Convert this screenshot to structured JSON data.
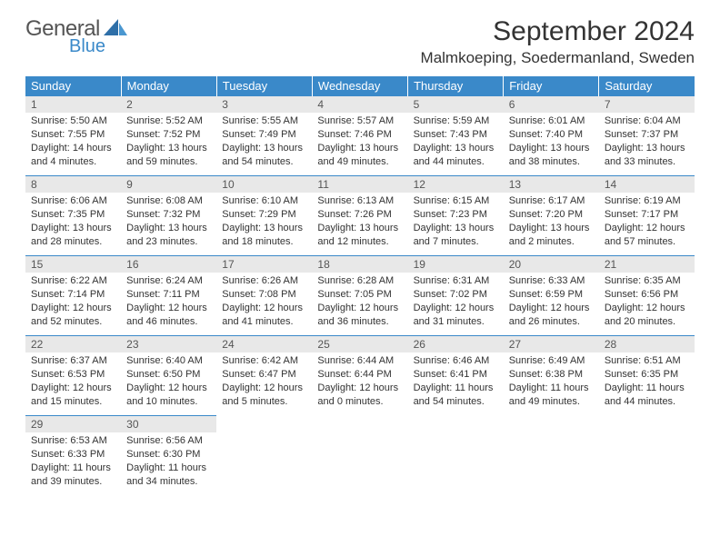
{
  "brand": {
    "general": "General",
    "blue": "Blue"
  },
  "header": {
    "month_title": "September 2024",
    "location": "Malmkoeping, Soedermanland, Sweden"
  },
  "colors": {
    "header_bg": "#3a89c9",
    "header_fg": "#ffffff",
    "daynum_bg": "#e8e8e8",
    "border": "#3a89c9",
    "text": "#333333"
  },
  "day_headers": [
    "Sunday",
    "Monday",
    "Tuesday",
    "Wednesday",
    "Thursday",
    "Friday",
    "Saturday"
  ],
  "weeks": [
    [
      {
        "n": "1",
        "sr": "5:50 AM",
        "ss": "7:55 PM",
        "dh": "14",
        "dm": "4"
      },
      {
        "n": "2",
        "sr": "5:52 AM",
        "ss": "7:52 PM",
        "dh": "13",
        "dm": "59"
      },
      {
        "n": "3",
        "sr": "5:55 AM",
        "ss": "7:49 PM",
        "dh": "13",
        "dm": "54"
      },
      {
        "n": "4",
        "sr": "5:57 AM",
        "ss": "7:46 PM",
        "dh": "13",
        "dm": "49"
      },
      {
        "n": "5",
        "sr": "5:59 AM",
        "ss": "7:43 PM",
        "dh": "13",
        "dm": "44"
      },
      {
        "n": "6",
        "sr": "6:01 AM",
        "ss": "7:40 PM",
        "dh": "13",
        "dm": "38"
      },
      {
        "n": "7",
        "sr": "6:04 AM",
        "ss": "7:37 PM",
        "dh": "13",
        "dm": "33"
      }
    ],
    [
      {
        "n": "8",
        "sr": "6:06 AM",
        "ss": "7:35 PM",
        "dh": "13",
        "dm": "28"
      },
      {
        "n": "9",
        "sr": "6:08 AM",
        "ss": "7:32 PM",
        "dh": "13",
        "dm": "23"
      },
      {
        "n": "10",
        "sr": "6:10 AM",
        "ss": "7:29 PM",
        "dh": "13",
        "dm": "18"
      },
      {
        "n": "11",
        "sr": "6:13 AM",
        "ss": "7:26 PM",
        "dh": "13",
        "dm": "12"
      },
      {
        "n": "12",
        "sr": "6:15 AM",
        "ss": "7:23 PM",
        "dh": "13",
        "dm": "7"
      },
      {
        "n": "13",
        "sr": "6:17 AM",
        "ss": "7:20 PM",
        "dh": "13",
        "dm": "2"
      },
      {
        "n": "14",
        "sr": "6:19 AM",
        "ss": "7:17 PM",
        "dh": "12",
        "dm": "57"
      }
    ],
    [
      {
        "n": "15",
        "sr": "6:22 AM",
        "ss": "7:14 PM",
        "dh": "12",
        "dm": "52"
      },
      {
        "n": "16",
        "sr": "6:24 AM",
        "ss": "7:11 PM",
        "dh": "12",
        "dm": "46"
      },
      {
        "n": "17",
        "sr": "6:26 AM",
        "ss": "7:08 PM",
        "dh": "12",
        "dm": "41"
      },
      {
        "n": "18",
        "sr": "6:28 AM",
        "ss": "7:05 PM",
        "dh": "12",
        "dm": "36"
      },
      {
        "n": "19",
        "sr": "6:31 AM",
        "ss": "7:02 PM",
        "dh": "12",
        "dm": "31"
      },
      {
        "n": "20",
        "sr": "6:33 AM",
        "ss": "6:59 PM",
        "dh": "12",
        "dm": "26"
      },
      {
        "n": "21",
        "sr": "6:35 AM",
        "ss": "6:56 PM",
        "dh": "12",
        "dm": "20"
      }
    ],
    [
      {
        "n": "22",
        "sr": "6:37 AM",
        "ss": "6:53 PM",
        "dh": "12",
        "dm": "15"
      },
      {
        "n": "23",
        "sr": "6:40 AM",
        "ss": "6:50 PM",
        "dh": "12",
        "dm": "10"
      },
      {
        "n": "24",
        "sr": "6:42 AM",
        "ss": "6:47 PM",
        "dh": "12",
        "dm": "5"
      },
      {
        "n": "25",
        "sr": "6:44 AM",
        "ss": "6:44 PM",
        "dh": "12",
        "dm": "0"
      },
      {
        "n": "26",
        "sr": "6:46 AM",
        "ss": "6:41 PM",
        "dh": "11",
        "dm": "54"
      },
      {
        "n": "27",
        "sr": "6:49 AM",
        "ss": "6:38 PM",
        "dh": "11",
        "dm": "49"
      },
      {
        "n": "28",
        "sr": "6:51 AM",
        "ss": "6:35 PM",
        "dh": "11",
        "dm": "44"
      }
    ],
    [
      {
        "n": "29",
        "sr": "6:53 AM",
        "ss": "6:33 PM",
        "dh": "11",
        "dm": "39"
      },
      {
        "n": "30",
        "sr": "6:56 AM",
        "ss": "6:30 PM",
        "dh": "11",
        "dm": "34"
      },
      null,
      null,
      null,
      null,
      null
    ]
  ]
}
